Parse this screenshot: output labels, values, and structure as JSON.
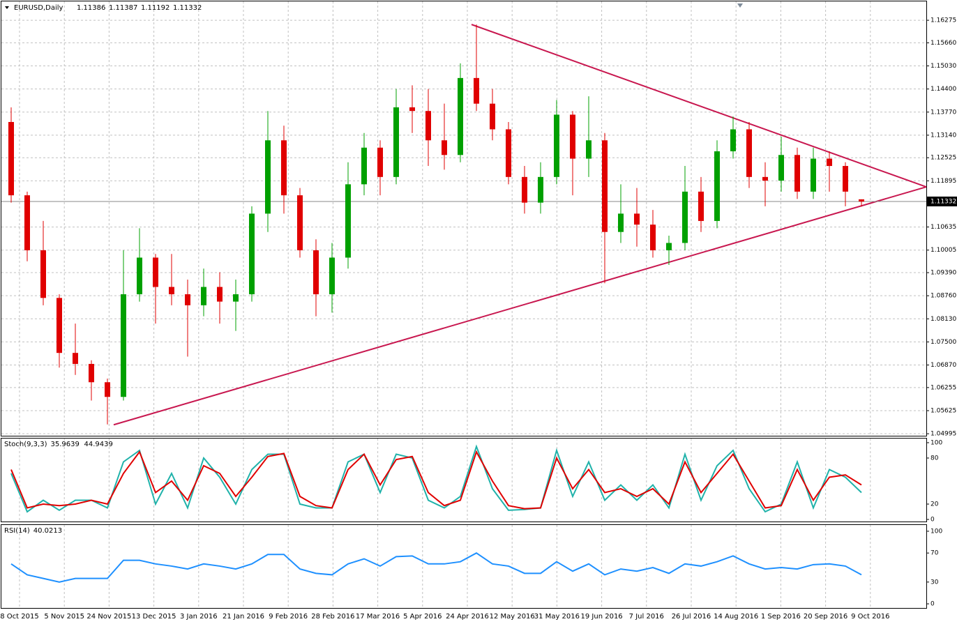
{
  "chart_data": [
    {
      "type": "candlestick",
      "title": "EURUSD,Daily",
      "ohlc_header": [
        1.11386,
        1.11387,
        1.11192,
        1.11332
      ],
      "x_labels": [
        "8 Oct 2015",
        "5 Nov 2015",
        "24 Nov 2015",
        "13 Dec 2015",
        "3 Jan 2016",
        "21 Jan 2016",
        "9 Feb 2016",
        "28 Feb 2016",
        "17 Mar 2016",
        "5 Apr 2016",
        "24 Apr 2016",
        "12 May 2016",
        "31 May 2016",
        "19 Jun 2016",
        "7 Jul 2016",
        "26 Jul 2016",
        "14 Aug 2016",
        "1 Sep 2016",
        "20 Sep 2016",
        "9 Oct 2016"
      ],
      "open": [
        1.135,
        1.115,
        1.1,
        1.087,
        1.072,
        1.069,
        1.064,
        1.06,
        1.088,
        1.098,
        1.09,
        1.088,
        1.085,
        1.09,
        1.086,
        1.088,
        1.11,
        1.13,
        1.115,
        1.1,
        1.088,
        1.098,
        1.118,
        1.128,
        1.12,
        1.139,
        1.138,
        1.13,
        1.126,
        1.147,
        1.14,
        1.133,
        1.12,
        1.113,
        1.12,
        1.137,
        1.125,
        1.13,
        1.105,
        1.11,
        1.107,
        1.1,
        1.102,
        1.116,
        1.108,
        1.127,
        1.133,
        1.12,
        1.119,
        1.126,
        1.116,
        1.125,
        1.123,
        1.1139
      ],
      "high": [
        1.139,
        1.116,
        1.108,
        1.088,
        1.08,
        1.07,
        1.065,
        1.1,
        1.106,
        1.099,
        1.099,
        1.092,
        1.095,
        1.094,
        1.092,
        1.112,
        1.138,
        1.134,
        1.117,
        1.103,
        1.102,
        1.124,
        1.132,
        1.13,
        1.144,
        1.145,
        1.144,
        1.14,
        1.151,
        1.1616,
        1.144,
        1.135,
        1.123,
        1.124,
        1.141,
        1.138,
        1.142,
        1.132,
        1.118,
        1.117,
        1.111,
        1.104,
        1.123,
        1.12,
        1.13,
        1.1365,
        1.135,
        1.124,
        1.131,
        1.128,
        1.128,
        1.127,
        1.124,
        1.1139
      ],
      "low": [
        1.113,
        1.097,
        1.085,
        1.068,
        1.066,
        1.059,
        1.0525,
        1.059,
        1.086,
        1.08,
        1.085,
        1.071,
        1.082,
        1.08,
        1.078,
        1.086,
        1.105,
        1.11,
        1.098,
        1.082,
        1.083,
        1.095,
        1.115,
        1.115,
        1.118,
        1.132,
        1.123,
        1.122,
        1.124,
        1.138,
        1.13,
        1.118,
        1.11,
        1.11,
        1.118,
        1.115,
        1.12,
        1.091,
        1.102,
        1.101,
        1.098,
        1.096,
        1.1,
        1.105,
        1.106,
        1.125,
        1.117,
        1.112,
        1.116,
        1.114,
        1.114,
        1.116,
        1.112,
        1.1119
      ],
      "close": [
        1.115,
        1.1,
        1.087,
        1.072,
        1.069,
        1.064,
        1.06,
        1.088,
        1.098,
        1.09,
        1.088,
        1.085,
        1.09,
        1.086,
        1.088,
        1.11,
        1.13,
        1.115,
        1.1,
        1.088,
        1.098,
        1.118,
        1.128,
        1.12,
        1.139,
        1.138,
        1.13,
        1.126,
        1.147,
        1.14,
        1.133,
        1.12,
        1.113,
        1.12,
        1.137,
        1.125,
        1.13,
        1.105,
        1.11,
        1.107,
        1.1,
        1.102,
        1.116,
        1.108,
        1.127,
        1.133,
        1.12,
        1.119,
        1.126,
        1.116,
        1.125,
        1.123,
        1.116,
        1.1133
      ],
      "up_color": "#00a000",
      "down_color": "#e00000",
      "last_price": 1.11332,
      "trendlines": [
        {
          "start": 1.1616,
          "end": 1.1173,
          "color": "#c8174f"
        },
        {
          "start": 1.0524,
          "end": 1.1173,
          "color": "#c8174f"
        }
      ],
      "ylim": [
        1.0494,
        1.1679
      ],
      "yticks": [
        1.16275,
        {
          "value": 1.1566,
          "label": "1.15660"
        },
        {
          "value": 1.1503,
          "label": "1.15030"
        },
        {
          "value": 1.144,
          "label": "1.14400"
        },
        {
          "value": 1.1377,
          "label": "1.13770"
        },
        {
          "value": 1.1314,
          "label": "1.13140"
        },
        1.12525,
        1.11895,
        {
          "value": 1.10635,
          "label": "1.10635"
        },
        1.10005,
        {
          "value": 1.0939,
          "label": "1.09390"
        },
        {
          "value": 1.0876,
          "label": "1.08760"
        },
        {
          "value": 1.0813,
          "label": "1.08130"
        },
        {
          "value": 1.075,
          "label": "1.07500"
        },
        {
          "value": 1.0687,
          "label": "1.06870"
        },
        1.06255,
        1.05625,
        1.04995
      ],
      "grid": true
    },
    {
      "type": "line",
      "title": "Stoch(9,3,3)",
      "current_values": [
        35.9639,
        44.9439
      ],
      "series": [
        {
          "color": "#20b2aa",
          "values": [
            60,
            10,
            25,
            12,
            25,
            25,
            15,
            75,
            90,
            20,
            60,
            15,
            80,
            55,
            20,
            65,
            85,
            85,
            20,
            15,
            15,
            75,
            85,
            35,
            85,
            80,
            25,
            15,
            30,
            95,
            40,
            12,
            13,
            15,
            90,
            30,
            75,
            25,
            45,
            25,
            45,
            15,
            85,
            25,
            70,
            90,
            40,
            10,
            20,
            75,
            15,
            65,
            55,
            35
          ]
        },
        {
          "color": "#e00000",
          "values": [
            65,
            15,
            20,
            18,
            20,
            25,
            20,
            60,
            88,
            35,
            50,
            25,
            70,
            60,
            30,
            55,
            82,
            86,
            30,
            18,
            15,
            65,
            85,
            45,
            78,
            82,
            35,
            18,
            25,
            88,
            50,
            18,
            14,
            15,
            80,
            40,
            65,
            35,
            40,
            30,
            40,
            20,
            75,
            35,
            60,
            85,
            50,
            15,
            18,
            65,
            25,
            55,
            58,
            45
          ]
        }
      ],
      "ylim": [
        -2.7,
        105.4
      ],
      "yticks": [
        100,
        80,
        20,
        0
      ]
    },
    {
      "type": "line",
      "title": "RSI(14)",
      "current_values": [
        40.0213
      ],
      "series": [
        {
          "color": "#1e90ff",
          "values": [
            55,
            40,
            35,
            30,
            35,
            35,
            35,
            60,
            60,
            55,
            52,
            48,
            55,
            52,
            48,
            55,
            68,
            68,
            48,
            42,
            40,
            55,
            62,
            52,
            65,
            66,
            55,
            55,
            58,
            70,
            55,
            52,
            42,
            42,
            58,
            45,
            55,
            40,
            48,
            45,
            50,
            42,
            55,
            52,
            58,
            66,
            55,
            48,
            50,
            48,
            54,
            55,
            52,
            40
          ]
        }
      ],
      "ylim": [
        -5.7,
        108.6
      ],
      "yticks": [
        100,
        70,
        30,
        0
      ]
    }
  ]
}
